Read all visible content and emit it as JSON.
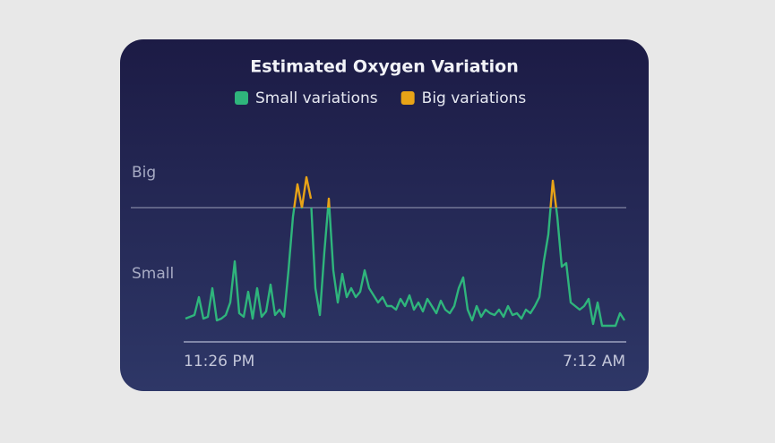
{
  "chart_data": {
    "type": "line",
    "title": "Estimated Oxygen Variation",
    "categories": [
      "11:26 PM",
      null,
      null,
      null,
      null,
      null,
      null,
      null,
      null,
      null,
      null,
      null,
      null,
      null,
      null,
      null,
      null,
      null,
      null,
      null,
      null,
      null,
      null,
      null,
      null,
      null,
      null,
      null,
      null,
      null,
      null,
      null,
      null,
      null,
      null,
      null,
      null,
      null,
      null,
      null,
      null,
      null,
      null,
      null,
      null,
      null,
      null,
      null,
      null,
      null,
      null,
      null,
      null,
      null,
      null,
      null,
      null,
      null,
      null,
      null,
      null,
      null,
      null,
      null,
      null,
      null,
      null,
      null,
      null,
      null,
      null,
      null,
      null,
      null,
      null,
      null,
      null,
      null,
      null,
      null,
      null,
      null,
      null,
      null,
      null,
      null,
      null,
      null,
      null,
      null,
      null,
      null,
      null,
      null,
      null,
      null,
      null,
      null,
      "7:12 AM"
    ],
    "series": [
      {
        "name": "Small variations",
        "color": "#2fb57c",
        "values": [
          13,
          14,
          15,
          25,
          13,
          14,
          30,
          12,
          13,
          15,
          22,
          45,
          16,
          14,
          28,
          13,
          30,
          14,
          17,
          32,
          15,
          18,
          14,
          40,
          70,
          88,
          75,
          92,
          80,
          30,
          15,
          50,
          80,
          40,
          22,
          38,
          25,
          30,
          25,
          28,
          40,
          30,
          26,
          22,
          25,
          20,
          20,
          18,
          24,
          20,
          26,
          18,
          22,
          17,
          24,
          20,
          16,
          23,
          18,
          16,
          20,
          30,
          36,
          18,
          12,
          20,
          14,
          18,
          16,
          15,
          18,
          14,
          20,
          15,
          16,
          13,
          18,
          16,
          20,
          25,
          45,
          60,
          90,
          70,
          42,
          44,
          22,
          20,
          18,
          20,
          24,
          10,
          22,
          9,
          9,
          9,
          9,
          16,
          12
        ]
      },
      {
        "name": "Big variations",
        "color": "#e8a317",
        "values": [
          null,
          null,
          null,
          null,
          null,
          null,
          null,
          null,
          null,
          null,
          null,
          null,
          null,
          null,
          null,
          null,
          null,
          null,
          null,
          null,
          null,
          null,
          null,
          null,
          70,
          88,
          75,
          92,
          80,
          null,
          null,
          50,
          80,
          40,
          null,
          null,
          null,
          null,
          null,
          null,
          null,
          null,
          null,
          null,
          null,
          null,
          null,
          null,
          null,
          null,
          null,
          null,
          null,
          null,
          null,
          null,
          null,
          null,
          null,
          null,
          null,
          null,
          null,
          null,
          null,
          null,
          null,
          null,
          null,
          null,
          null,
          null,
          null,
          null,
          null,
          null,
          null,
          null,
          null,
          null,
          null,
          60,
          90,
          70,
          null,
          null,
          null,
          null,
          null,
          null,
          null,
          null,
          null,
          null,
          null,
          null,
          null,
          null,
          null
        ]
      }
    ],
    "ylim": [
      0,
      100
    ],
    "yticks": [
      {
        "value": 94.5,
        "label": "Big"
      },
      {
        "value": 38,
        "label": "Small"
      }
    ],
    "threshold": 75
  }
}
